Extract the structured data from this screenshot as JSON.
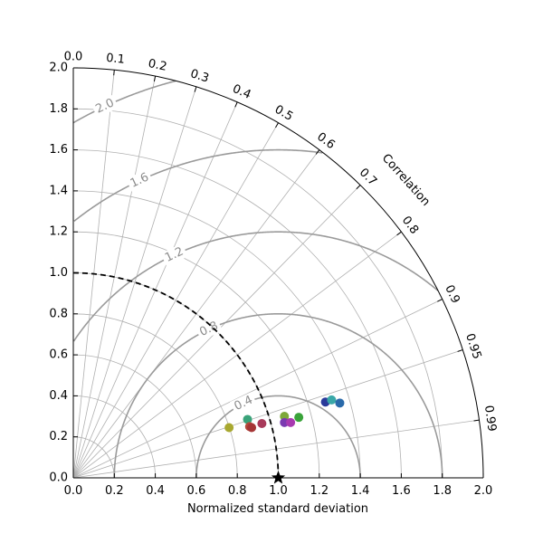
{
  "chart_data": {
    "type": "scatter",
    "subtype": "taylor-diagram",
    "xlabel": "Normalized standard deviation",
    "correlation_label": "Correlation",
    "std_max": 2.0,
    "std_ticks": [
      0.0,
      0.2,
      0.4,
      0.6,
      0.8,
      1.0,
      1.2,
      1.4,
      1.6,
      1.8,
      2.0
    ],
    "std_tick_labels": [
      "0.0",
      "0.2",
      "0.4",
      "0.6",
      "0.8",
      "1.0",
      "1.2",
      "1.4",
      "1.6",
      "1.8",
      "2.0"
    ],
    "correlation_ticks": [
      0.0,
      0.1,
      0.2,
      0.3,
      0.4,
      0.5,
      0.6,
      0.7,
      0.8,
      0.9,
      0.95,
      0.99
    ],
    "correlation_tick_labels": [
      "0.0",
      "0.1",
      "0.2",
      "0.3",
      "0.4",
      "0.5",
      "0.6",
      "0.7",
      "0.8",
      "0.9",
      "0.95",
      "0.99"
    ],
    "rms_contours": [
      0.4,
      0.8,
      1.2,
      1.6,
      2.0
    ],
    "rms_contour_labels": [
      "0.4",
      "0.8",
      "1.2",
      "1.6",
      "2.0"
    ],
    "reference": {
      "std": 1.0,
      "marker": "star",
      "arc_style": "dashed"
    },
    "grid": true,
    "points": [
      {
        "x": 0.76,
        "y": 0.245,
        "color": "#a8a830"
      },
      {
        "x": 0.85,
        "y": 0.285,
        "color": "#3aa37a"
      },
      {
        "x": 0.86,
        "y": 0.25,
        "color": "#b5483a"
      },
      {
        "x": 0.87,
        "y": 0.245,
        "color": "#a53535"
      },
      {
        "x": 0.92,
        "y": 0.265,
        "color": "#a83a5a"
      },
      {
        "x": 1.03,
        "y": 0.3,
        "color": "#7da83a"
      },
      {
        "x": 1.03,
        "y": 0.27,
        "color": "#7a3ab0"
      },
      {
        "x": 1.06,
        "y": 0.27,
        "color": "#a83ab0"
      },
      {
        "x": 1.1,
        "y": 0.295,
        "color": "#3aa33a"
      },
      {
        "x": 1.23,
        "y": 0.37,
        "color": "#2a3a9a"
      },
      {
        "x": 1.26,
        "y": 0.38,
        "color": "#3aa8a8"
      },
      {
        "x": 1.3,
        "y": 0.365,
        "color": "#2a6aaa"
      }
    ]
  }
}
